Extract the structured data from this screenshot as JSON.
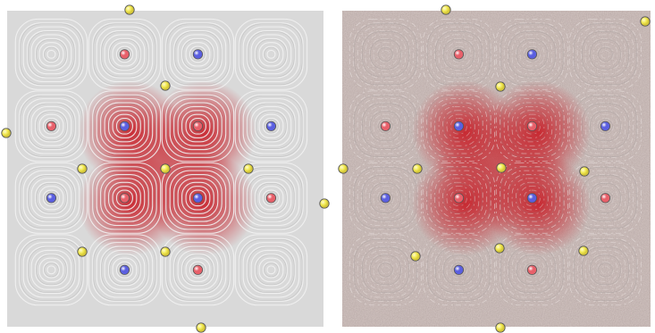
{
  "panels": [
    {
      "id": "left",
      "style": "clean-streamlines",
      "background": "#d9d9d9",
      "streamline_color": "#f2f2f2",
      "heat_color": "#c8141e",
      "vortex_grid": {
        "cols": 4,
        "rows": 4
      },
      "centers": [
        {
          "gx": 1,
          "gy": 0,
          "type": "red"
        },
        {
          "gx": 2,
          "gy": 0,
          "type": "blue"
        },
        {
          "gx": 0,
          "gy": 1,
          "type": "red"
        },
        {
          "gx": 1,
          "gy": 1,
          "type": "blue"
        },
        {
          "gx": 2,
          "gy": 1,
          "type": "red"
        },
        {
          "gx": 3,
          "gy": 1,
          "type": "blue"
        },
        {
          "gx": 0,
          "gy": 2,
          "type": "blue"
        },
        {
          "gx": 1,
          "gy": 2,
          "type": "red"
        },
        {
          "gx": 2,
          "gy": 2,
          "type": "blue"
        },
        {
          "gx": 3,
          "gy": 2,
          "type": "red"
        },
        {
          "gx": 1,
          "gy": 3,
          "type": "blue"
        },
        {
          "gx": 2,
          "gy": 3,
          "type": "red"
        }
      ]
    },
    {
      "id": "right",
      "style": "noisy-streamlines",
      "background": "#cdbfbc",
      "streamline_color": "#eae2e0",
      "heat_color": "#c8141e",
      "vortex_grid": {
        "cols": 4,
        "rows": 4
      },
      "centers": [
        {
          "gx": 1,
          "gy": 0,
          "type": "red"
        },
        {
          "gx": 2,
          "gy": 0,
          "type": "blue"
        },
        {
          "gx": 0,
          "gy": 1,
          "type": "red"
        },
        {
          "gx": 1,
          "gy": 1,
          "type": "blue"
        },
        {
          "gx": 2,
          "gy": 1,
          "type": "red"
        },
        {
          "gx": 3,
          "gy": 1,
          "type": "blue"
        },
        {
          "gx": 0,
          "gy": 2,
          "type": "blue"
        },
        {
          "gx": 1,
          "gy": 2,
          "type": "red"
        },
        {
          "gx": 2,
          "gy": 2,
          "type": "blue"
        },
        {
          "gx": 3,
          "gy": 2,
          "type": "red"
        },
        {
          "gx": 1,
          "gy": 3,
          "type": "blue"
        },
        {
          "gx": 2,
          "gy": 3,
          "type": "red"
        }
      ]
    }
  ],
  "marker_colors": {
    "red": "#e8606a",
    "blue": "#5b5fe0",
    "yellow": "#f2ea52",
    "outline": "#555555"
  }
}
